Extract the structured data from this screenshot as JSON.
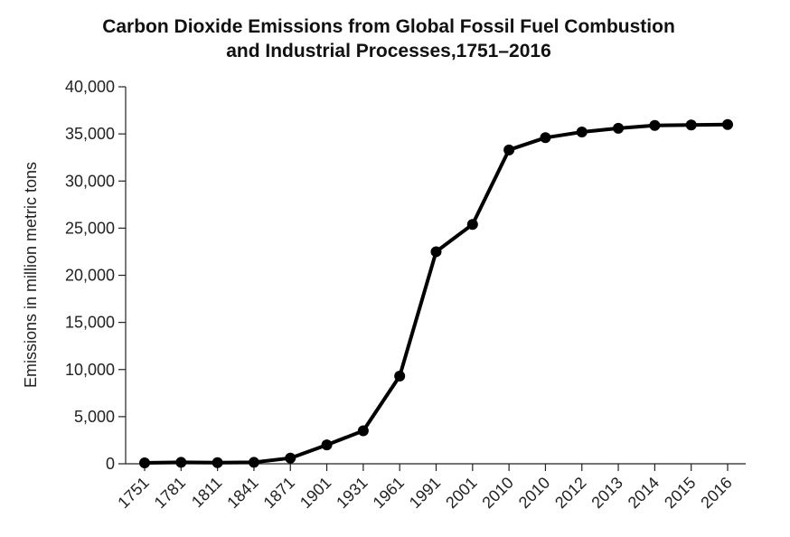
{
  "chart_data": {
    "type": "line",
    "title_line1": "Carbon Dioxide Emissions from Global Fossil Fuel Combustion",
    "title_line2": "and Industrial Processes,1751–2016",
    "xlabel": "",
    "ylabel": "Emissions in million metric tons",
    "categories": [
      "1751",
      "1781",
      "1811",
      "1841",
      "1871",
      "1901",
      "1931",
      "1961",
      "1991",
      "2001",
      "2010",
      "2010",
      "2012",
      "2013",
      "2014",
      "2015",
      "2016"
    ],
    "values": [
      100,
      150,
      120,
      150,
      600,
      2000,
      3500,
      9300,
      22500,
      25400,
      33300,
      34600,
      35200,
      35600,
      35900,
      35950,
      36000
    ],
    "ylim": [
      0,
      40000
    ],
    "yticks": [
      0,
      5000,
      10000,
      15000,
      20000,
      25000,
      30000,
      35000,
      40000
    ],
    "ytick_labels": [
      "0",
      "5,000",
      "10,000",
      "15,000",
      "20,000",
      "25,000",
      "30,000",
      "35,000",
      "40,000"
    ],
    "grid": false,
    "line_color": "#000000"
  }
}
